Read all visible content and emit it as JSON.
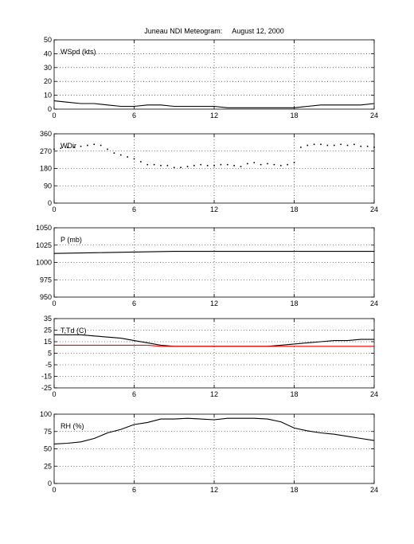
{
  "title": "Juneau NDI Meteogram:     August 12, 2000",
  "chart_data": [
    {
      "type": "line",
      "label": "WSpd (kts)",
      "x_ticks": [
        0,
        6,
        12,
        18,
        24
      ],
      "xlim": [
        0,
        24
      ],
      "ylim": [
        0,
        50
      ],
      "y_ticks": [
        0,
        10,
        20,
        30,
        40,
        50
      ],
      "grid": true,
      "series": [
        {
          "color": "#000000",
          "x": [
            0,
            1,
            2,
            3,
            4,
            5,
            6,
            7,
            8,
            9,
            10,
            11,
            12,
            13,
            14,
            15,
            16,
            17,
            18,
            19,
            20,
            21,
            22,
            23,
            24
          ],
          "y": [
            6,
            5,
            4,
            4,
            3,
            2,
            2,
            3,
            3,
            2,
            2,
            2,
            2,
            1,
            1,
            1,
            1,
            1,
            1,
            2,
            3,
            3,
            3,
            3,
            4
          ]
        }
      ]
    },
    {
      "type": "scatter",
      "label": "WDir",
      "x_ticks": [
        0,
        6,
        12,
        18,
        24
      ],
      "xlim": [
        0,
        24
      ],
      "ylim": [
        0,
        360
      ],
      "y_ticks": [
        0,
        90,
        180,
        270,
        360
      ],
      "grid": true,
      "series": [
        {
          "color": "#000000",
          "x": [
            0,
            0.5,
            1,
            1.5,
            2,
            2.5,
            3,
            3.5,
            4,
            4.5,
            5,
            5.5,
            6,
            6.5,
            7,
            7.5,
            8,
            8.5,
            9,
            9.5,
            10,
            10.5,
            11,
            11.5,
            12,
            12.5,
            13,
            13.5,
            14,
            14.5,
            15,
            15.5,
            16,
            16.5,
            17,
            17.5,
            18,
            18.5,
            19,
            19.5,
            20,
            20.5,
            21,
            21.5,
            22,
            22.5,
            23,
            23.5,
            24
          ],
          "y": [
            280,
            285,
            290,
            290,
            295,
            300,
            305,
            300,
            280,
            260,
            250,
            240,
            230,
            215,
            200,
            200,
            195,
            195,
            185,
            185,
            190,
            195,
            200,
            195,
            195,
            200,
            200,
            195,
            190,
            205,
            210,
            200,
            205,
            200,
            195,
            200,
            210,
            290,
            300,
            305,
            305,
            300,
            300,
            305,
            300,
            305,
            295,
            295,
            290
          ]
        }
      ]
    },
    {
      "type": "line",
      "label": "P (mb)",
      "x_ticks": [
        0,
        6,
        12,
        18,
        24
      ],
      "xlim": [
        0,
        24
      ],
      "ylim": [
        950,
        1050
      ],
      "y_ticks": [
        950,
        975,
        1000,
        1025,
        1050
      ],
      "grid": true,
      "series": [
        {
          "color": "#000000",
          "x": [
            0,
            3,
            6,
            9,
            12,
            15,
            18,
            21,
            24
          ],
          "y": [
            1013,
            1014,
            1015,
            1016,
            1016,
            1016,
            1016,
            1016,
            1016
          ]
        }
      ]
    },
    {
      "type": "line",
      "label": "T,Td (C)",
      "x_ticks": [
        0,
        6,
        12,
        18,
        24
      ],
      "xlim": [
        0,
        24
      ],
      "ylim": [
        -25,
        35
      ],
      "y_ticks": [
        -25,
        -15,
        -5,
        5,
        15,
        25,
        35
      ],
      "grid": true,
      "series": [
        {
          "color": "#000000",
          "x": [
            0,
            1,
            2,
            3,
            4,
            5,
            6,
            7,
            8,
            9,
            10,
            11,
            12,
            13,
            14,
            15,
            16,
            17,
            18,
            19,
            20,
            21,
            22,
            23,
            24
          ],
          "y": [
            21,
            21,
            21,
            20,
            19,
            18,
            16,
            14,
            12,
            11,
            11,
            11,
            11,
            11,
            11,
            11,
            11,
            12,
            13,
            14,
            15,
            16,
            16,
            17,
            17
          ]
        },
        {
          "color": "#ff0000",
          "x": [
            0,
            1,
            2,
            3,
            4,
            5,
            6,
            7,
            8,
            9,
            10,
            11,
            12,
            13,
            14,
            15,
            16,
            17,
            18,
            19,
            20,
            21,
            22,
            23,
            24
          ],
          "y": [
            12,
            12,
            12,
            12,
            12,
            12,
            12,
            12,
            11,
            11,
            11,
            11,
            11,
            11,
            11,
            11,
            11,
            11,
            11,
            11,
            11,
            11,
            11,
            11,
            11
          ]
        }
      ]
    },
    {
      "type": "line",
      "label": "RH (%)",
      "x_ticks": [
        0,
        6,
        12,
        18,
        24
      ],
      "xlim": [
        0,
        24
      ],
      "ylim": [
        0,
        100
      ],
      "y_ticks": [
        0,
        25,
        50,
        75,
        100
      ],
      "grid": true,
      "series": [
        {
          "color": "#000000",
          "x": [
            0,
            1,
            2,
            3,
            4,
            5,
            6,
            7,
            8,
            9,
            10,
            11,
            12,
            13,
            14,
            15,
            16,
            17,
            18,
            19,
            20,
            21,
            22,
            23,
            24
          ],
          "y": [
            57,
            58,
            60,
            65,
            73,
            78,
            85,
            88,
            93,
            93,
            94,
            93,
            92,
            94,
            94,
            94,
            93,
            89,
            80,
            76,
            73,
            71,
            68,
            65,
            62
          ]
        }
      ]
    }
  ]
}
